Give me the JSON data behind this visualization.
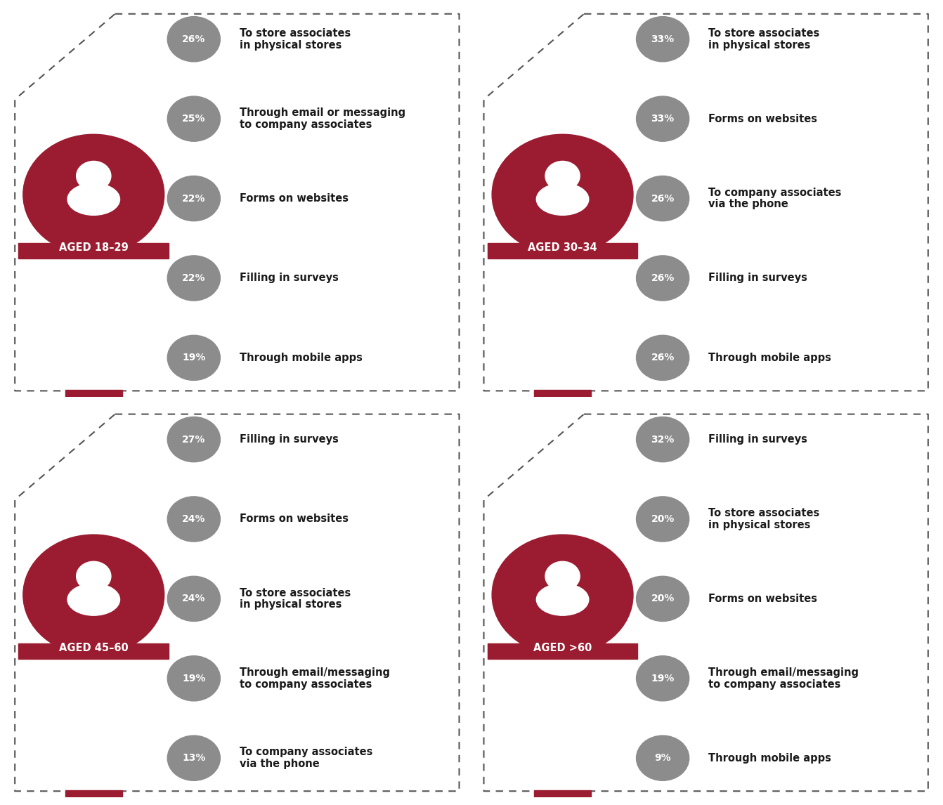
{
  "panels": [
    {
      "age_label": "AGED 18–29",
      "items": [
        {
          "pct": "26%",
          "text": "To store associates\nin physical stores"
        },
        {
          "pct": "25%",
          "text": "Through email or messaging\nto company associates"
        },
        {
          "pct": "22%",
          "text": "Forms on websites"
        },
        {
          "pct": "22%",
          "text": "Filling in surveys"
        },
        {
          "pct": "19%",
          "text": "Through mobile apps"
        }
      ]
    },
    {
      "age_label": "AGED 30–34",
      "items": [
        {
          "pct": "33%",
          "text": "To store associates\nin physical stores"
        },
        {
          "pct": "33%",
          "text": "Forms on websites"
        },
        {
          "pct": "26%",
          "text": "To company associates\nvia the phone"
        },
        {
          "pct": "26%",
          "text": "Filling in surveys"
        },
        {
          "pct": "26%",
          "text": "Through mobile apps"
        }
      ]
    },
    {
      "age_label": "AGED 45–60",
      "items": [
        {
          "pct": "27%",
          "text": "Filling in surveys"
        },
        {
          "pct": "24%",
          "text": "Forms on websites"
        },
        {
          "pct": "24%",
          "text": "To store associates\nin physical stores"
        },
        {
          "pct": "19%",
          "text": "Through email/messaging\nto company associates"
        },
        {
          "pct": "13%",
          "text": "To company associates\nvia the phone"
        }
      ]
    },
    {
      "age_label": "AGED >60",
      "items": [
        {
          "pct": "32%",
          "text": "Filling in surveys"
        },
        {
          "pct": "20%",
          "text": "To store associates\nin physical stores"
        },
        {
          "pct": "20%",
          "text": "Forms on websites"
        },
        {
          "pct": "19%",
          "text": "Through email/messaging\nto company associates"
        },
        {
          "pct": "9%",
          "text": "Through mobile apps"
        }
      ]
    }
  ],
  "bg_color": "#ffffff",
  "circle_color": "#8c8c8c",
  "dark_red": "#9b1b30",
  "text_color": "#1a1a1a",
  "pct_text_color": "#ffffff",
  "border_color": "#555555"
}
